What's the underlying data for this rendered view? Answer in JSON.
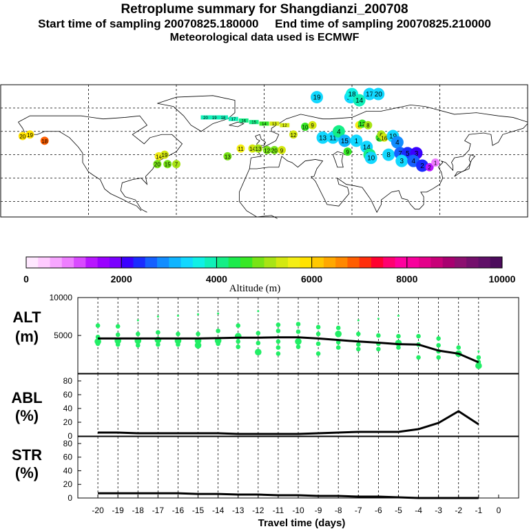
{
  "header": {
    "title": "Retroplume summary for Shangdianzi_200708",
    "line2": "Start time of sampling 20070825.180000     End time of sampling 20070825.210000",
    "line3": "Meteorological data used is ECMWF"
  },
  "colorbar": {
    "colors": [
      "#ffe8ff",
      "#ffcbff",
      "#f7a6ff",
      "#ee7eff",
      "#d94aff",
      "#b816ff",
      "#9a00ff",
      "#7a00ff",
      "#3a00ff",
      "#1a2cff",
      "#1560ff",
      "#128dff",
      "#10b4ff",
      "#12d8ff",
      "#10f0e6",
      "#10f0b8",
      "#14ee86",
      "#1bea4c",
      "#37e826",
      "#78e416",
      "#a8e414",
      "#d4e810",
      "#f4ee14",
      "#ffe200",
      "#ffc800",
      "#ffa800",
      "#ff8800",
      "#ff5e00",
      "#ff2e0c",
      "#ff0030",
      "#ff0070",
      "#ff009e",
      "#f8009c",
      "#e4008a",
      "#c80078",
      "#a80070",
      "#8c1070",
      "#74106c",
      "#601068",
      "#4c0c5c"
    ],
    "tick_labels": [
      "0",
      "2000",
      "4000",
      "6000",
      "8000",
      "10000"
    ],
    "axis_label": "Altitude (m)"
  },
  "map": {
    "plume_markers": [
      {
        "lon": -165,
        "lat": 57,
        "day": "20",
        "color": "#ffe200"
      },
      {
        "lon": -160,
        "lat": 58,
        "day": "19",
        "color": "#ffe200"
      },
      {
        "lon": -150,
        "lat": 54,
        "day": "18",
        "color": "#ff5e00"
      },
      {
        "lon": -72,
        "lat": 44,
        "day": "14",
        "color": "#f4ee14"
      },
      {
        "lon": -68,
        "lat": 45,
        "day": "19",
        "color": "#d4e810"
      },
      {
        "lon": -73,
        "lat": 39,
        "day": "20",
        "color": "#78e416"
      },
      {
        "lon": -66,
        "lat": 39,
        "day": "15",
        "color": "#78e416"
      },
      {
        "lon": -60,
        "lat": 39,
        "day": "7",
        "color": "#a8e414"
      },
      {
        "lon": -25,
        "lat": 44,
        "day": "13",
        "color": "#78e416"
      },
      {
        "lon": -16,
        "lat": 49,
        "day": "11",
        "color": "#f4ee14"
      },
      {
        "lon": -8,
        "lat": 49,
        "day": "14",
        "color": "#d4e810"
      },
      {
        "lon": -4,
        "lat": 49,
        "day": "13",
        "color": "#a8e414"
      },
      {
        "lon": 2,
        "lat": 48,
        "day": "12",
        "color": "#78e416"
      },
      {
        "lon": 7,
        "lat": 48,
        "day": "20",
        "color": "#78e416"
      },
      {
        "lon": 12,
        "lat": 48,
        "day": "9",
        "color": "#d4e810"
      },
      {
        "lon": 20,
        "lat": 58,
        "day": "12",
        "color": "#d4e810"
      },
      {
        "lon": 28,
        "lat": 63,
        "day": "10",
        "color": "#37e826"
      },
      {
        "lon": 33,
        "lat": 64,
        "day": "9",
        "color": "#d4e810"
      },
      {
        "lon": 36,
        "lat": 82,
        "day": "19",
        "color": "#12d8ff"
      },
      {
        "lon": 40,
        "lat": 56,
        "day": "13",
        "color": "#12d8ff"
      },
      {
        "lon": 47,
        "lat": 56,
        "day": "11",
        "color": "#12d8ff"
      },
      {
        "lon": 51,
        "lat": 60,
        "day": "4",
        "color": "#14ee86"
      },
      {
        "lon": 59,
        "lat": 82,
        "day": "15",
        "color": "#12d8ff"
      },
      {
        "lon": 60,
        "lat": 84,
        "day": "18",
        "color": "#10f0e6"
      },
      {
        "lon": 65,
        "lat": 80,
        "day": "14",
        "color": "#10f0b8"
      },
      {
        "lon": 72,
        "lat": 84,
        "day": "17",
        "color": "#12d8ff"
      },
      {
        "lon": 78,
        "lat": 84,
        "day": "20",
        "color": "#12d8ff"
      },
      {
        "lon": 55,
        "lat": 54,
        "day": "15",
        "color": "#10b4ff"
      },
      {
        "lon": 57,
        "lat": 47,
        "day": "9",
        "color": "#37e826"
      },
      {
        "lon": 63,
        "lat": 54,
        "day": "1",
        "color": "#12d8ff"
      },
      {
        "lon": 65,
        "lat": 64,
        "day": "8",
        "color": "#f4ee14"
      },
      {
        "lon": 67,
        "lat": 65,
        "day": "12",
        "color": "#37e826"
      },
      {
        "lon": 71,
        "lat": 64,
        "day": "8",
        "color": "#a8e414"
      },
      {
        "lon": 70,
        "lat": 50,
        "day": "14",
        "color": "#12d8ff"
      },
      {
        "lon": 72,
        "lat": 45,
        "day": "11",
        "color": "#14ee86"
      },
      {
        "lon": 73,
        "lat": 43,
        "day": "10",
        "color": "#12d8ff"
      },
      {
        "lon": 79,
        "lat": 56,
        "day": "20",
        "color": "#37e826"
      },
      {
        "lon": 80,
        "lat": 58,
        "day": "6",
        "color": "#a8e414"
      },
      {
        "lon": 82,
        "lat": 56,
        "day": "16",
        "color": "#d4e810"
      },
      {
        "lon": 88,
        "lat": 57,
        "day": "19",
        "color": "#12d8ff"
      },
      {
        "lon": 91,
        "lat": 53,
        "day": "4",
        "color": "#128dff"
      },
      {
        "lon": 85,
        "lat": 45,
        "day": "8",
        "color": "#12d8ff"
      },
      {
        "lon": 93,
        "lat": 46,
        "day": "7",
        "color": "#1560ff"
      },
      {
        "lon": 98,
        "lat": 46,
        "day": "5",
        "color": "#1a2cff"
      },
      {
        "lon": 104,
        "lat": 46,
        "day": "3",
        "color": "#3a00ff"
      },
      {
        "lon": 94,
        "lat": 41,
        "day": "3",
        "color": "#12d8ff"
      },
      {
        "lon": 102,
        "lat": 41,
        "day": "4",
        "color": "#1560ff"
      },
      {
        "lon": 108,
        "lat": 38,
        "day": "2",
        "color": "#1a2cff"
      },
      {
        "lon": 113,
        "lat": 37,
        "day": "2",
        "color": "#b816ff"
      },
      {
        "lon": 117,
        "lat": 40,
        "day": "1",
        "color": "#ee7eff"
      }
    ],
    "trail_markers": [
      {
        "lon": -40,
        "lat": 69,
        "day": "20",
        "color": "#10f0b8"
      },
      {
        "lon": -34,
        "lat": 69,
        "day": "19",
        "color": "#10f0b8"
      },
      {
        "lon": -28,
        "lat": 69,
        "day": "18",
        "color": "#10f0b8"
      },
      {
        "lon": -21,
        "lat": 68,
        "day": "17",
        "color": "#10f0b8"
      },
      {
        "lon": -14,
        "lat": 67,
        "day": "16",
        "color": "#14ee86"
      },
      {
        "lon": -7,
        "lat": 66,
        "day": "15",
        "color": "#14ee86"
      },
      {
        "lon": 0,
        "lat": 65,
        "day": "14",
        "color": "#37e826"
      },
      {
        "lon": 7,
        "lat": 65,
        "day": "13",
        "color": "#d4e810"
      },
      {
        "lon": 14,
        "lat": 64,
        "day": "12",
        "color": "#d4e810"
      }
    ]
  },
  "chart_data": [
    {
      "type": "scatter",
      "title": "ALT",
      "ylabel": "ALT (m)",
      "ylabel_line1": "ALT",
      "ylabel_line2": "(m)",
      "xlabel": "Travel time (days)",
      "ylim": [
        0,
        10000
      ],
      "y_ticks": [
        "10000",
        "5000"
      ],
      "mean_line": {
        "x": [
          -20,
          -19,
          -18,
          -17,
          -16,
          -15,
          -14,
          -13,
          -12,
          -11,
          -10,
          -9,
          -8,
          -7,
          -6,
          -5,
          -4,
          -3,
          -2,
          -1
        ],
        "y": [
          4600,
          4600,
          4600,
          4600,
          4600,
          4600,
          4650,
          4700,
          4700,
          4750,
          4750,
          4600,
          4400,
          4200,
          4050,
          3850,
          3800,
          3000,
          2600,
          1450
        ]
      },
      "points": [
        {
          "x": -20,
          "y": 6300,
          "s": "m"
        },
        {
          "x": -20,
          "y": 4800,
          "s": "m"
        },
        {
          "x": -20,
          "y": 4200,
          "s": "l"
        },
        {
          "x": -20,
          "y": 3900,
          "s": "m"
        },
        {
          "x": -19,
          "y": 6200,
          "s": "m"
        },
        {
          "x": -19,
          "y": 5100,
          "s": "m"
        },
        {
          "x": -19,
          "y": 4300,
          "s": "l"
        },
        {
          "x": -19,
          "y": 3800,
          "s": "m"
        },
        {
          "x": -18,
          "y": 7000,
          "s": "s"
        },
        {
          "x": -18,
          "y": 5200,
          "s": "m"
        },
        {
          "x": -18,
          "y": 4300,
          "s": "l"
        },
        {
          "x": -18,
          "y": 3700,
          "s": "m"
        },
        {
          "x": -17,
          "y": 7500,
          "s": "s"
        },
        {
          "x": -17,
          "y": 5400,
          "s": "m"
        },
        {
          "x": -17,
          "y": 4400,
          "s": "l"
        },
        {
          "x": -17,
          "y": 3800,
          "s": "m"
        },
        {
          "x": -16,
          "y": 7600,
          "s": "s"
        },
        {
          "x": -16,
          "y": 5200,
          "s": "m"
        },
        {
          "x": -16,
          "y": 4300,
          "s": "l"
        },
        {
          "x": -16,
          "y": 3800,
          "s": "m"
        },
        {
          "x": -15,
          "y": 7800,
          "s": "s"
        },
        {
          "x": -15,
          "y": 5200,
          "s": "m"
        },
        {
          "x": -15,
          "y": 4300,
          "s": "l"
        },
        {
          "x": -15,
          "y": 3700,
          "s": "l"
        },
        {
          "x": -14,
          "y": 7900,
          "s": "s"
        },
        {
          "x": -14,
          "y": 5600,
          "s": "m"
        },
        {
          "x": -14,
          "y": 4300,
          "s": "l"
        },
        {
          "x": -14,
          "y": 3900,
          "s": "m"
        },
        {
          "x": -13,
          "y": 6300,
          "s": "m"
        },
        {
          "x": -13,
          "y": 4900,
          "s": "l"
        },
        {
          "x": -13,
          "y": 4200,
          "s": "m"
        },
        {
          "x": -13,
          "y": 3500,
          "s": "m"
        },
        {
          "x": -12,
          "y": 8200,
          "s": "s"
        },
        {
          "x": -12,
          "y": 5300,
          "s": "m"
        },
        {
          "x": -12,
          "y": 4000,
          "s": "m"
        },
        {
          "x": -12,
          "y": 2800,
          "s": "l"
        },
        {
          "x": -11,
          "y": 6400,
          "s": "m"
        },
        {
          "x": -11,
          "y": 5600,
          "s": "m"
        },
        {
          "x": -11,
          "y": 4200,
          "s": "m"
        },
        {
          "x": -11,
          "y": 3400,
          "s": "m"
        },
        {
          "x": -11,
          "y": 2600,
          "s": "m"
        },
        {
          "x": -10,
          "y": 6500,
          "s": "m"
        },
        {
          "x": -10,
          "y": 5500,
          "s": "m"
        },
        {
          "x": -10,
          "y": 4200,
          "s": "l"
        },
        {
          "x": -10,
          "y": 3500,
          "s": "m"
        },
        {
          "x": -9,
          "y": 6100,
          "s": "m"
        },
        {
          "x": -9,
          "y": 5200,
          "s": "m"
        },
        {
          "x": -9,
          "y": 3900,
          "s": "m"
        },
        {
          "x": -9,
          "y": 2600,
          "s": "m"
        },
        {
          "x": -8,
          "y": 6000,
          "s": "m"
        },
        {
          "x": -8,
          "y": 5200,
          "s": "l"
        },
        {
          "x": -8,
          "y": 4100,
          "s": "m"
        },
        {
          "x": -8,
          "y": 3400,
          "s": "m"
        },
        {
          "x": -7,
          "y": 7000,
          "s": "s"
        },
        {
          "x": -7,
          "y": 5200,
          "s": "m"
        },
        {
          "x": -7,
          "y": 3800,
          "s": "m"
        },
        {
          "x": -7,
          "y": 3200,
          "s": "m"
        },
        {
          "x": -6,
          "y": 7200,
          "s": "s"
        },
        {
          "x": -6,
          "y": 5000,
          "s": "m"
        },
        {
          "x": -6,
          "y": 3900,
          "s": "m"
        },
        {
          "x": -6,
          "y": 3200,
          "s": "m"
        },
        {
          "x": -5,
          "y": 7600,
          "s": "s"
        },
        {
          "x": -5,
          "y": 4900,
          "s": "m"
        },
        {
          "x": -5,
          "y": 4000,
          "s": "l"
        },
        {
          "x": -5,
          "y": 3400,
          "s": "m"
        },
        {
          "x": -4,
          "y": 4900,
          "s": "m"
        },
        {
          "x": -4,
          "y": 3800,
          "s": "m"
        },
        {
          "x": -4,
          "y": 2100,
          "s": "m"
        },
        {
          "x": -3,
          "y": 4600,
          "s": "m"
        },
        {
          "x": -3,
          "y": 3700,
          "s": "m"
        },
        {
          "x": -3,
          "y": 2900,
          "s": "m"
        },
        {
          "x": -3,
          "y": 2100,
          "s": "m"
        },
        {
          "x": -2,
          "y": 3400,
          "s": "m"
        },
        {
          "x": -2,
          "y": 2600,
          "s": "l"
        },
        {
          "x": -1,
          "y": 2900,
          "s": "s"
        },
        {
          "x": -1,
          "y": 2100,
          "s": "m"
        },
        {
          "x": -1,
          "y": 1500,
          "s": "m"
        },
        {
          "x": -1,
          "y": 1000,
          "s": "l"
        }
      ]
    },
    {
      "type": "line",
      "title": "ABL",
      "ylabel": "ABL (%)",
      "ylabel_line1": "ABL",
      "ylabel_line2": "(%)",
      "ylim": [
        0,
        90
      ],
      "y_ticks": [
        "80",
        "60",
        "40",
        "20",
        "0"
      ],
      "x": [
        -20,
        -19,
        -18,
        -17,
        -16,
        -15,
        -14,
        -13,
        -12,
        -11,
        -10,
        -9,
        -8,
        -7,
        -6,
        -5,
        -4,
        -3,
        -2,
        -1
      ],
      "y": [
        5,
        5,
        4,
        4,
        4,
        4,
        4,
        3,
        3,
        3,
        3,
        4,
        5,
        6,
        6,
        6,
        10,
        19,
        36,
        17
      ]
    },
    {
      "type": "line",
      "title": "STR",
      "ylabel": "STR (%)",
      "ylabel_line1": "STR",
      "ylabel_line2": "(%)",
      "ylim": [
        0,
        90
      ],
      "y_ticks": [
        "80",
        "60",
        "40",
        "20",
        "0"
      ],
      "x": [
        -20,
        -19,
        -18,
        -17,
        -16,
        -15,
        -14,
        -13,
        -12,
        -11,
        -10,
        -9,
        -8,
        -7,
        -6,
        -5,
        -4,
        -3,
        -2,
        -1
      ],
      "y": [
        7,
        7,
        7,
        7,
        7,
        6,
        6,
        5,
        5,
        4,
        4,
        3,
        3,
        2,
        2,
        1,
        0,
        0,
        0,
        0
      ]
    }
  ],
  "x_axis": {
    "tick_labels": [
      "-20",
      "-19",
      "-18",
      "-17",
      "-16",
      "-15",
      "-14",
      "-13",
      "-12",
      "-11",
      "-10",
      "-9",
      "-8",
      "-7",
      "-6",
      "-5",
      "-4",
      "-3",
      "-2",
      "-1",
      "0"
    ],
    "label": "Travel time (days)"
  }
}
